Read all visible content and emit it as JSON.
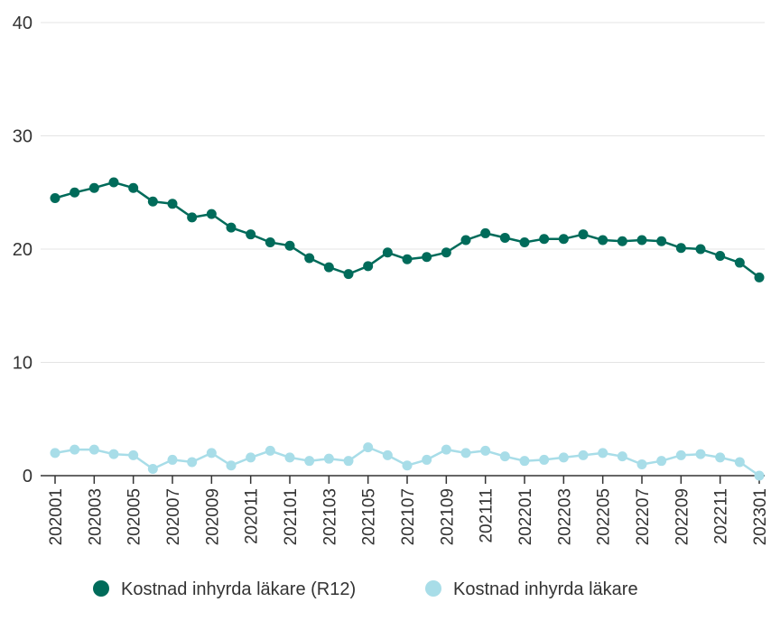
{
  "chart_data": {
    "type": "line",
    "title": "",
    "xlabel": "",
    "ylabel": "",
    "ylim": [
      0,
      40
    ],
    "yticks": [
      "0",
      "10",
      "20",
      "30",
      "40"
    ],
    "grid": true,
    "legend_position": "bottom",
    "x": [
      "202001",
      "202002",
      "202003",
      "202004",
      "202005",
      "202006",
      "202007",
      "202008",
      "202009",
      "202010",
      "202011",
      "202012",
      "202101",
      "202102",
      "202103",
      "202104",
      "202105",
      "202106",
      "202107",
      "202108",
      "202109",
      "202110",
      "202111",
      "202112",
      "202201",
      "202202",
      "202203",
      "202204",
      "202205",
      "202206",
      "202207",
      "202208",
      "202209",
      "202210",
      "202211",
      "202212",
      "202301"
    ],
    "x_tick_labels": [
      "202001",
      "202003",
      "202005",
      "202007",
      "202009",
      "202011",
      "202101",
      "202103",
      "202105",
      "202107",
      "202109",
      "202111",
      "202201",
      "202203",
      "202205",
      "202207",
      "202209",
      "202211",
      "202301"
    ],
    "series": [
      {
        "name": "Kostnad inhyrda läkare (R12)",
        "color": "#006B5A",
        "values": [
          24.5,
          25.0,
          25.4,
          25.9,
          25.4,
          24.2,
          24.0,
          22.8,
          23.1,
          21.9,
          21.3,
          20.6,
          20.3,
          19.2,
          18.4,
          17.8,
          18.5,
          19.7,
          19.1,
          19.3,
          19.7,
          20.8,
          21.4,
          21.0,
          20.6,
          20.9,
          20.9,
          21.3,
          20.8,
          20.7,
          20.8,
          20.7,
          20.1,
          20.0,
          19.4,
          18.8,
          17.5
        ]
      },
      {
        "name": "Kostnad inhyrda läkare",
        "color": "#A8DDE8",
        "values": [
          2.0,
          2.3,
          2.3,
          1.9,
          1.8,
          0.6,
          1.4,
          1.2,
          2.0,
          0.9,
          1.6,
          2.2,
          1.6,
          1.3,
          1.5,
          1.3,
          2.5,
          1.8,
          0.9,
          1.4,
          2.3,
          2.0,
          2.2,
          1.7,
          1.3,
          1.4,
          1.6,
          1.8,
          2.0,
          1.7,
          1.0,
          1.3,
          1.8,
          1.9,
          1.6,
          1.2,
          0.0
        ]
      }
    ]
  }
}
